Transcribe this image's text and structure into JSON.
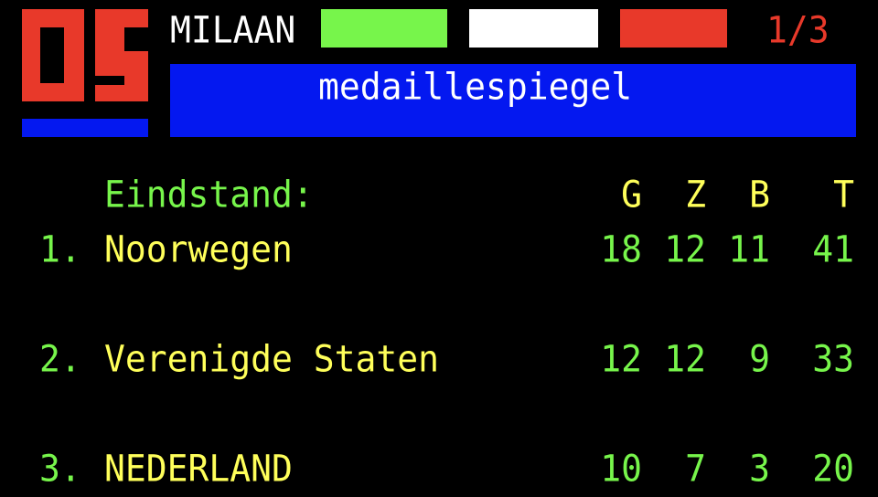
{
  "header": {
    "logo_text": "OS",
    "location": "MILAAN",
    "flag_colors": [
      "#77f54b",
      "#ffffff",
      "#e8392a"
    ],
    "page_indicator": "1/3",
    "title": "medaillespiegel"
  },
  "colors": {
    "red": "#e8392a",
    "blue": "#0418f0",
    "green": "#77f54b",
    "yellow": "#ffff5a"
  },
  "table": {
    "label": "Eindstand:",
    "columns": [
      "G",
      "Z",
      "B",
      "T"
    ],
    "rows": [
      {
        "rank": "1.",
        "country": "Noorwegen",
        "values": [
          "18",
          "12",
          "11",
          "41"
        ]
      },
      {
        "rank": "2.",
        "country": "Verenigde Staten",
        "values": [
          "12",
          "12",
          "9",
          "33"
        ]
      },
      {
        "rank": "3.",
        "country": "NEDERLAND",
        "values": [
          "10",
          "7",
          "3",
          "20"
        ]
      }
    ]
  }
}
